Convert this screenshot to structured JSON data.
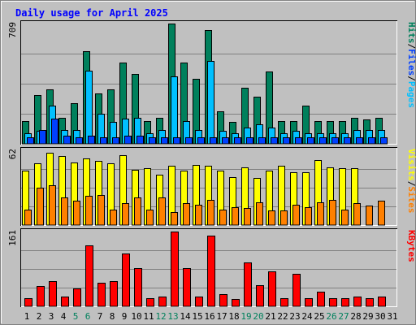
{
  "chart_data": {
    "type": "bar",
    "title": "Daily usage for April 2025",
    "colors": {
      "background": "#c0c0c0",
      "title": "#0000ff",
      "hits": "#00805c",
      "files": "#00c0ff",
      "pages": "#0040ff",
      "visits": "#ffff00",
      "sites": "#ff8000",
      "kbytes": "#ff0000",
      "weekend_label": "#00805c",
      "day_label": "#000000"
    },
    "x": {
      "labels": [
        "1",
        "2",
        "3",
        "4",
        "5",
        "6",
        "7",
        "8",
        "9",
        "10",
        "11",
        "12",
        "13",
        "14",
        "15",
        "16",
        "17",
        "18",
        "19",
        "20",
        "21",
        "22",
        "23",
        "24",
        "25",
        "26",
        "27",
        "28",
        "29",
        "30",
        "31"
      ],
      "weekend": [
        5,
        6,
        12,
        13,
        19,
        20,
        26,
        27
      ]
    },
    "panels": [
      {
        "id": "top",
        "max_label": "709",
        "ylim": [
          0,
          709
        ],
        "legend": [
          {
            "text": "Hits",
            "color_key": "hits"
          },
          {
            "text": "/",
            "color_key": "day_label"
          },
          {
            "text": "Files",
            "color_key": "pages"
          },
          {
            "text": "/",
            "color_key": "day_label"
          },
          {
            "text": "Pages",
            "color_key": "files"
          }
        ],
        "series": [
          {
            "name": "Hits",
            "color_key": "hits",
            "values": [
              135,
              287,
              319,
              151,
              240,
              544,
              298,
              319,
              479,
              411,
              135,
              153,
              709,
              477,
              384,
              673,
              193,
              129,
              330,
              276,
              426,
              135,
              135,
              225,
              135,
              135,
              135,
              151,
              146,
              151,
              0
            ]
          },
          {
            "name": "Files",
            "color_key": "files",
            "values": [
              64,
              75,
              225,
              80,
              80,
              431,
              177,
              130,
              147,
              153,
              64,
              80,
              397,
              135,
              80,
              489,
              75,
              64,
              96,
              113,
              98,
              64,
              75,
              64,
              64,
              64,
              64,
              80,
              80,
              80,
              0
            ]
          },
          {
            "name": "Pages",
            "color_key": "pages",
            "values": [
              40,
              80,
              150,
              50,
              40,
              48,
              40,
              40,
              48,
              48,
              40,
              40,
              40,
              40,
              40,
              40,
              40,
              40,
              40,
              40,
              40,
              40,
              40,
              40,
              40,
              40,
              40,
              40,
              40,
              40,
              0
            ]
          }
        ]
      },
      {
        "id": "middle",
        "max_label": "62",
        "ylim": [
          0,
          62
        ],
        "legend": [
          {
            "text": "Visits",
            "color_key": "visits"
          },
          {
            "text": "/",
            "color_key": "day_label"
          },
          {
            "text": "Sites",
            "color_key": "sites"
          }
        ],
        "series": [
          {
            "name": "Visits",
            "color_key": "visits",
            "values": [
              45,
              51,
              60,
              57,
              52,
              55,
              53,
              51,
              58,
              46,
              47,
              42,
              49,
              45,
              50,
              49,
              45,
              40,
              48,
              39,
              45,
              49,
              44,
              44,
              54,
              48,
              47,
              47,
              0,
              0,
              0
            ]
          },
          {
            "name": "Sites",
            "color_key": "sites",
            "values": [
              13,
              31,
              33,
              23,
              20,
              24,
              25,
              13,
              18,
              23,
              13,
              23,
              11,
              18,
              17,
              21,
              13,
              15,
              14,
              19,
              12,
              12,
              17,
              15,
              19,
              21,
              13,
              18,
              16,
              20,
              0
            ]
          }
        ]
      },
      {
        "id": "bottom",
        "max_label": "161",
        "ylim": [
          0,
          161
        ],
        "legend": [
          {
            "text": "KBytes",
            "color_key": "kbytes"
          }
        ],
        "series": [
          {
            "name": "KBytes",
            "color_key": "kbytes",
            "values": [
              18,
              44,
              55,
              21,
              38,
              132,
              50,
              55,
              114,
              82,
              18,
              21,
              161,
              83,
              21,
              153,
              26,
              16,
              95,
              46,
              75,
              18,
              70,
              18,
              31,
              18,
              18,
              21,
              18,
              21,
              0
            ]
          }
        ]
      }
    ]
  }
}
